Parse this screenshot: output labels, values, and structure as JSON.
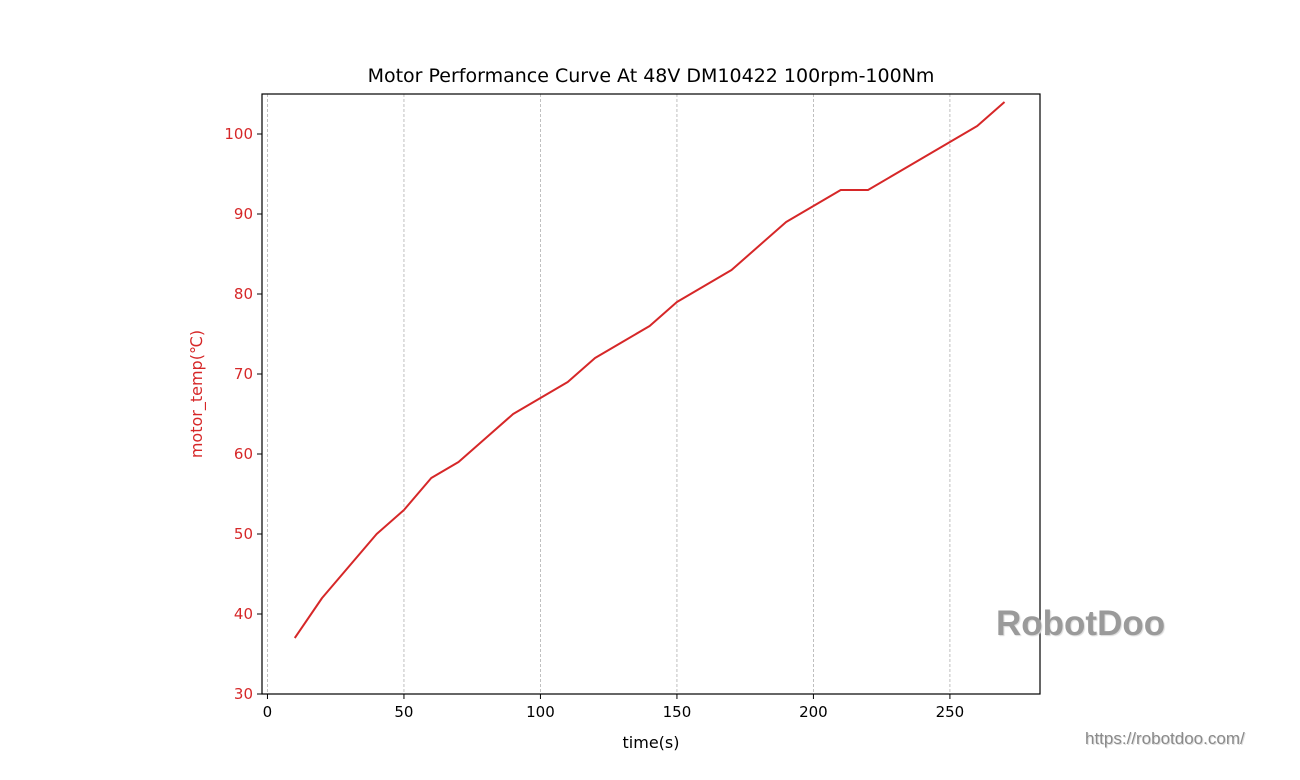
{
  "chart_data": {
    "type": "line",
    "title": "Motor Performance Curve At 48V DM10422 100rpm-100Nm",
    "xlabel": "time(s)",
    "ylabel": "motor_temp(℃)",
    "xlim": [
      -2,
      283
    ],
    "ylim": [
      30,
      105
    ],
    "xticks": [
      0,
      50,
      100,
      150,
      200,
      250
    ],
    "yticks": [
      30,
      40,
      50,
      60,
      70,
      80,
      90,
      100
    ],
    "grid": "vertical dashed",
    "colors": {
      "line": "#d62728",
      "ylabel": "#d62728",
      "ytick": "#d62728",
      "grid": "#b0b0b0"
    },
    "series": [
      {
        "x": [
          10,
          20,
          30,
          40,
          50,
          60,
          70,
          80,
          90,
          100,
          110,
          120,
          130,
          140,
          150,
          160,
          170,
          180,
          190,
          200,
          210,
          220,
          230,
          240,
          250,
          260,
          270
        ],
        "values": [
          37,
          42,
          46,
          50,
          53,
          57,
          59,
          62,
          65,
          67,
          69,
          72,
          74,
          76,
          79,
          81,
          83,
          86,
          89,
          91,
          93,
          93,
          95,
          97,
          99,
          101,
          104
        ]
      }
    ]
  },
  "watermark": {
    "logo": "RobotDoo",
    "url": "https://robotdoo.com/"
  }
}
